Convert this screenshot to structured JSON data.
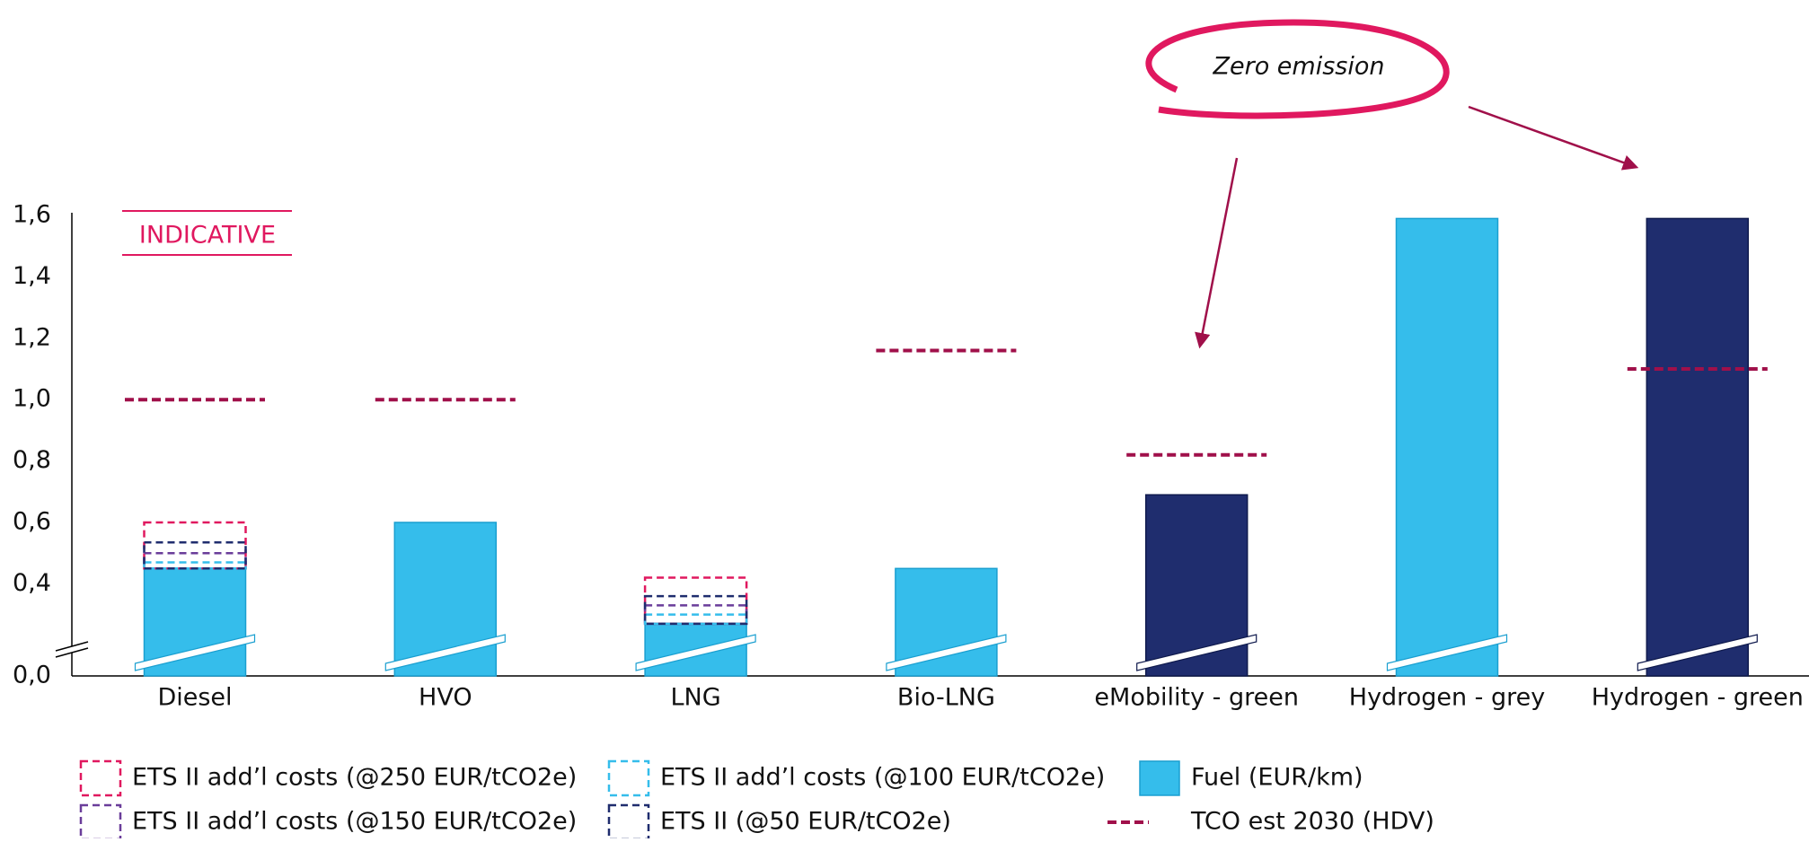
{
  "chart_data": {
    "type": "bar",
    "categories": [
      "Diesel",
      "HVO",
      "LNG",
      "Bio-LNG",
      "eMobility - green",
      "Hydrogen - grey",
      "Hydrogen - green"
    ],
    "ylim": [
      0.1,
      1.6
    ],
    "axis_break": true,
    "yticks": [
      {
        "value": 0,
        "label": "0,0"
      },
      {
        "value": 0.4,
        "label": "0,4"
      },
      {
        "value": 0.6,
        "label": "0,6"
      },
      {
        "value": 0.8,
        "label": "0,8"
      },
      {
        "value": 1.0,
        "label": "1,0"
      },
      {
        "value": 1.2,
        "label": "1,2"
      },
      {
        "value": 1.4,
        "label": "1,4"
      },
      {
        "value": 1.6,
        "label": "1,6"
      }
    ],
    "annotations": [
      "INDICATIVE",
      "Zero emission"
    ],
    "series": [
      {
        "name": "ETS II add’l costs (@250 EUR/tCO2e)",
        "kind": "ets",
        "color": "#e0185f",
        "values": [
          0.6,
          null,
          0.42,
          null,
          null,
          null,
          null
        ]
      },
      {
        "name": "ETS II add’l costs (@150 EUR/tCO2e)",
        "kind": "ets",
        "color": "#6a3d9a",
        "values": [
          0.5,
          null,
          0.33,
          null,
          null,
          null,
          null
        ]
      },
      {
        "name": "ETS II add’l costs (@100 EUR/tCO2e)",
        "kind": "ets",
        "color": "#35bdeb",
        "values": [
          0.47,
          null,
          0.3,
          null,
          null,
          null,
          null
        ]
      },
      {
        "name": "ETS II (@50 EUR/tCO2e)",
        "kind": "ets",
        "color": "#1f2d6e",
        "values": [
          0.535,
          null,
          0.36,
          null,
          null,
          null,
          null
        ]
      },
      {
        "name": "Fuel (EUR/km)",
        "kind": "bar",
        "color": "#35bdeb",
        "colors": [
          "#35bdeb",
          "#35bdeb",
          "#35bdeb",
          "#35bdeb",
          "#1f2d6e",
          "#35bdeb",
          "#1f2d6e"
        ],
        "values": [
          0.45,
          0.6,
          0.27,
          0.45,
          0.69,
          1.59,
          1.59
        ]
      },
      {
        "name": "TCO est 2030 (HDV)",
        "kind": "tco",
        "color": "#a0104a",
        "values": [
          1.0,
          1.0,
          null,
          1.16,
          0.82,
          null,
          1.1
        ]
      }
    ]
  }
}
